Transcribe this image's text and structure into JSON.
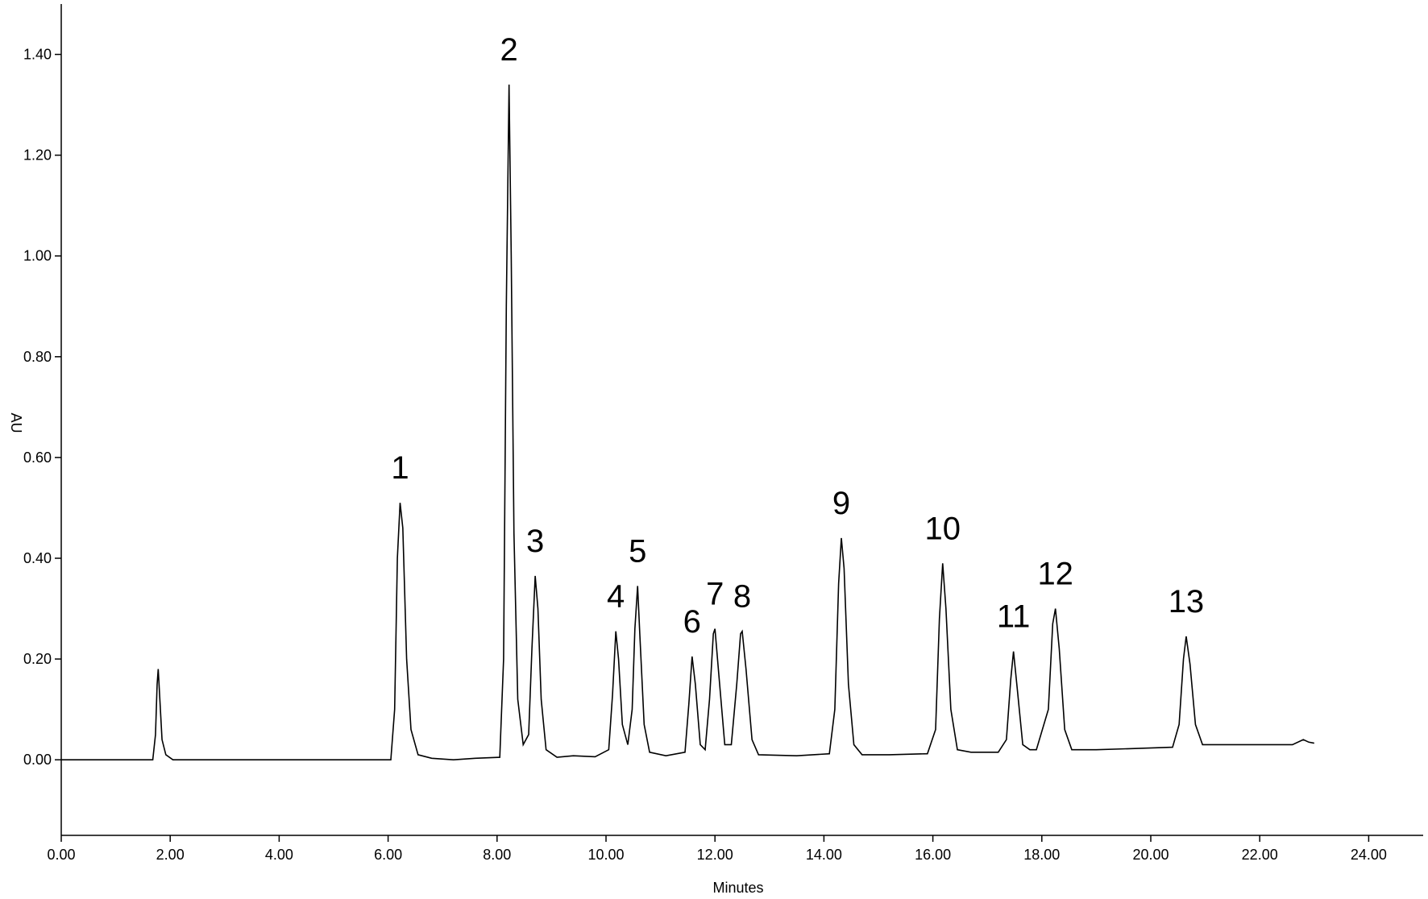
{
  "chart_data": {
    "type": "line",
    "x_label": "Minutes",
    "y_label": "AU",
    "xlim": [
      0,
      25
    ],
    "ylim": [
      -0.15,
      1.5
    ],
    "xticks": [
      {
        "value": 0,
        "label": "0.00"
      },
      {
        "value": 2,
        "label": "2.00"
      },
      {
        "value": 4,
        "label": "4.00"
      },
      {
        "value": 6,
        "label": "6.00"
      },
      {
        "value": 8,
        "label": "8.00"
      },
      {
        "value": 10,
        "label": "10.00"
      },
      {
        "value": 12,
        "label": "12.00"
      },
      {
        "value": 14,
        "label": "14.00"
      },
      {
        "value": 16,
        "label": "16.00"
      },
      {
        "value": 18,
        "label": "18.00"
      },
      {
        "value": 20,
        "label": "20.00"
      },
      {
        "value": 22,
        "label": "22.00"
      },
      {
        "value": 24,
        "label": "24.00"
      }
    ],
    "yticks": [
      {
        "value": 0,
        "label": "0.00"
      },
      {
        "value": 0.2,
        "label": "0.20"
      },
      {
        "value": 0.4,
        "label": "0.40"
      },
      {
        "value": 0.6,
        "label": "0.60"
      },
      {
        "value": 0.8,
        "label": "0.80"
      },
      {
        "value": 1.0,
        "label": "1.00"
      },
      {
        "value": 1.2,
        "label": "1.20"
      },
      {
        "value": 1.4,
        "label": "1.40"
      }
    ],
    "color": "#000000",
    "x": [
      0,
      1.68,
      1.73,
      1.76,
      1.78,
      1.81,
      1.85,
      1.92,
      2.05,
      6.05,
      6.12,
      6.17,
      6.22,
      6.27,
      6.34,
      6.42,
      6.55,
      6.8,
      7.2,
      7.6,
      8.05,
      8.12,
      8.17,
      8.22,
      8.26,
      8.31,
      8.38,
      8.48,
      8.58,
      8.64,
      8.7,
      8.75,
      8.81,
      8.9,
      9.1,
      9.4,
      9.8,
      10.05,
      10.12,
      10.18,
      10.23,
      10.3,
      10.4,
      10.48,
      10.53,
      10.58,
      10.62,
      10.7,
      10.8,
      11.1,
      11.45,
      11.52,
      11.58,
      11.64,
      11.73,
      11.82,
      11.9,
      11.97,
      12.0,
      12.07,
      12.18,
      12.3,
      12.4,
      12.47,
      12.5,
      12.57,
      12.68,
      12.8,
      13.5,
      14.1,
      14.2,
      14.27,
      14.32,
      14.37,
      14.45,
      14.55,
      14.7,
      15.2,
      15.9,
      16.05,
      16.12,
      16.18,
      16.24,
      16.33,
      16.45,
      16.7,
      17.2,
      17.35,
      17.43,
      17.48,
      17.55,
      17.65,
      17.78,
      17.9,
      18.12,
      18.2,
      18.25,
      18.32,
      18.42,
      18.55,
      19.0,
      19.6,
      20.4,
      20.52,
      20.6,
      20.65,
      20.72,
      20.82,
      20.95,
      21.5,
      22.6,
      22.8,
      22.9,
      23.0
    ],
    "values": [
      0,
      0,
      0.05,
      0.15,
      0.18,
      0.12,
      0.04,
      0.01,
      0,
      0,
      0.1,
      0.4,
      0.51,
      0.46,
      0.2,
      0.06,
      0.01,
      0.003,
      0,
      0.003,
      0.005,
      0.2,
      0.9,
      1.34,
      1.0,
      0.45,
      0.12,
      0.03,
      0.05,
      0.22,
      0.365,
      0.3,
      0.12,
      0.02,
      0.005,
      0.008,
      0.006,
      0.02,
      0.13,
      0.255,
      0.2,
      0.07,
      0.03,
      0.1,
      0.26,
      0.345,
      0.25,
      0.07,
      0.015,
      0.008,
      0.015,
      0.11,
      0.205,
      0.15,
      0.03,
      0.02,
      0.12,
      0.25,
      0.26,
      0.17,
      0.03,
      0.03,
      0.15,
      0.25,
      0.255,
      0.18,
      0.04,
      0.01,
      0.008,
      0.012,
      0.1,
      0.35,
      0.44,
      0.38,
      0.15,
      0.03,
      0.01,
      0.01,
      0.012,
      0.06,
      0.28,
      0.39,
      0.3,
      0.1,
      0.02,
      0.015,
      0.015,
      0.04,
      0.16,
      0.215,
      0.14,
      0.03,
      0.02,
      0.02,
      0.1,
      0.27,
      0.3,
      0.22,
      0.06,
      0.02,
      0.02,
      0.022,
      0.025,
      0.07,
      0.2,
      0.245,
      0.19,
      0.07,
      0.03,
      0.03,
      0.03,
      0.04,
      0.035,
      0.033
    ],
    "annotations": [
      {
        "text": "1",
        "x": 6.22,
        "y": 0.51
      },
      {
        "text": "2",
        "x": 8.22,
        "y": 1.34
      },
      {
        "text": "3",
        "x": 8.7,
        "y": 0.365
      },
      {
        "text": "4",
        "x": 10.18,
        "y": 0.255
      },
      {
        "text": "5",
        "x": 10.58,
        "y": 0.345
      },
      {
        "text": "6",
        "x": 11.58,
        "y": 0.205
      },
      {
        "text": "7",
        "x": 12.0,
        "y": 0.26
      },
      {
        "text": "8",
        "x": 12.5,
        "y": 0.255
      },
      {
        "text": "9",
        "x": 14.32,
        "y": 0.44
      },
      {
        "text": "10",
        "x": 16.18,
        "y": 0.39
      },
      {
        "text": "11",
        "x": 17.48,
        "y": 0.215
      },
      {
        "text": "12",
        "x": 18.25,
        "y": 0.3
      },
      {
        "text": "13",
        "x": 20.65,
        "y": 0.245
      }
    ]
  }
}
